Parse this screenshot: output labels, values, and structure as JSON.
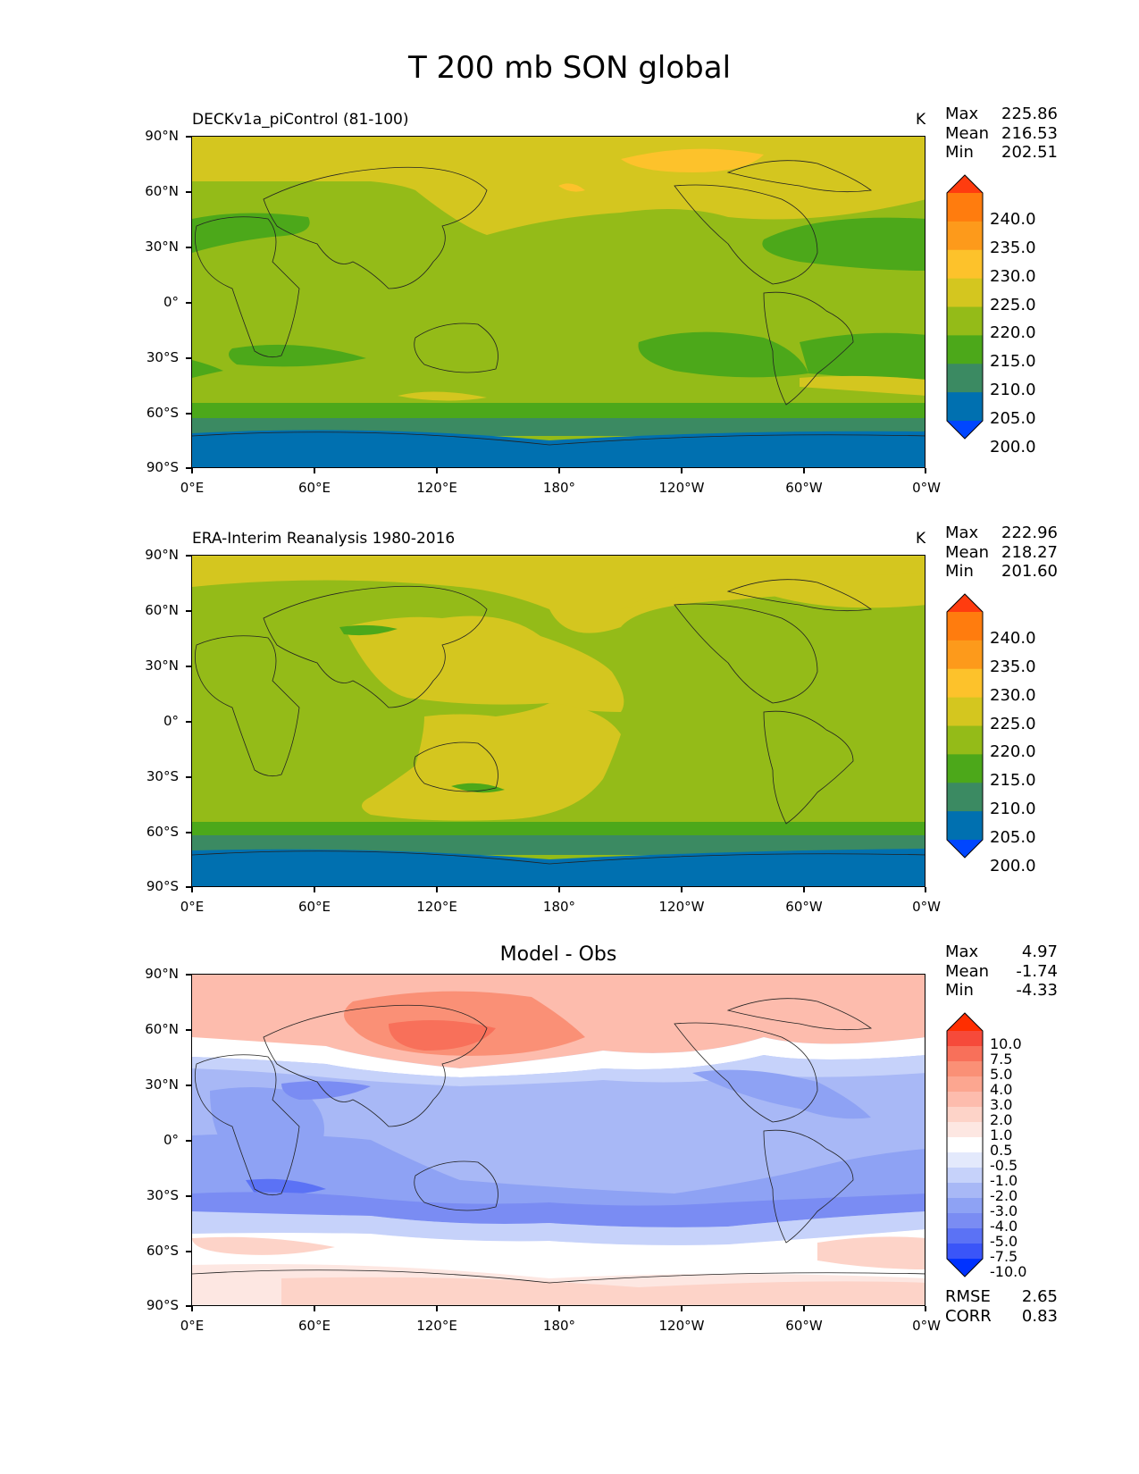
{
  "figure_title": "T 200 mb SON global",
  "panels": [
    {
      "label": "DECKv1a_piControl (81-100)",
      "units": "K",
      "stats": {
        "max_label": "Max",
        "max": "225.86",
        "mean_label": "Mean",
        "mean": "216.53",
        "min_label": "Min",
        "min": "202.51"
      },
      "colorbar": {
        "levels": [
          "240.0",
          "235.0",
          "230.0",
          "225.0",
          "220.0",
          "215.0",
          "210.0",
          "205.0",
          "200.0"
        ],
        "colors": [
          "#ff3c0f",
          "#ff7c0e",
          "#fd9a1b",
          "#fdc22b",
          "#d4c61f",
          "#94bb18",
          "#4ca81a",
          "#3b8a62",
          "#0070b0",
          "#0046ff"
        ]
      }
    },
    {
      "label": "ERA-Interim Reanalysis 1980-2016",
      "units": "K",
      "stats": {
        "max_label": "Max",
        "max": "222.96",
        "mean_label": "Mean",
        "mean": "218.27",
        "min_label": "Min",
        "min": "201.60"
      },
      "colorbar": {
        "levels": [
          "240.0",
          "235.0",
          "230.0",
          "225.0",
          "220.0",
          "215.0",
          "210.0",
          "205.0",
          "200.0"
        ],
        "colors": [
          "#ff3c0f",
          "#ff7c0e",
          "#fd9a1b",
          "#fdc22b",
          "#d4c61f",
          "#94bb18",
          "#4ca81a",
          "#3b8a62",
          "#0070b0",
          "#0046ff"
        ]
      }
    },
    {
      "title": "Model - Obs",
      "stats": {
        "max_label": "Max",
        "max": "4.97",
        "mean_label": "Mean",
        "mean": "-1.74",
        "min_label": "Min",
        "min": "-4.33"
      },
      "colorbar": {
        "levels": [
          "10.0",
          "7.5",
          "5.0",
          "4.0",
          "3.0",
          "2.0",
          "1.0",
          "0.5",
          "-0.5",
          "-1.0",
          "-2.0",
          "-3.0",
          "-4.0",
          "-5.0",
          "-7.5",
          "-10.0"
        ],
        "colors": [
          "#ff2e00",
          "#f64a3a",
          "#f8705a",
          "#fa9076",
          "#fca690",
          "#fdbcad",
          "#fdd3c8",
          "#fde7e2",
          "#ffffff",
          "#e3e9fc",
          "#c6d2fa",
          "#a8b8f6",
          "#8ea2f4",
          "#7a8cf3",
          "#5b72f5",
          "#3a55f8",
          "#0032ff"
        ]
      },
      "rmse_label": "RMSE",
      "rmse": "2.65",
      "corr_label": "CORR",
      "corr": "0.83"
    }
  ],
  "lat_ticks": [
    "90°N",
    "60°N",
    "30°N",
    "0°",
    "30°S",
    "60°S",
    "90°S"
  ],
  "lon_ticks": [
    "0°E",
    "60°E",
    "120°E",
    "180°",
    "120°W",
    "60°W",
    "0°W"
  ]
}
